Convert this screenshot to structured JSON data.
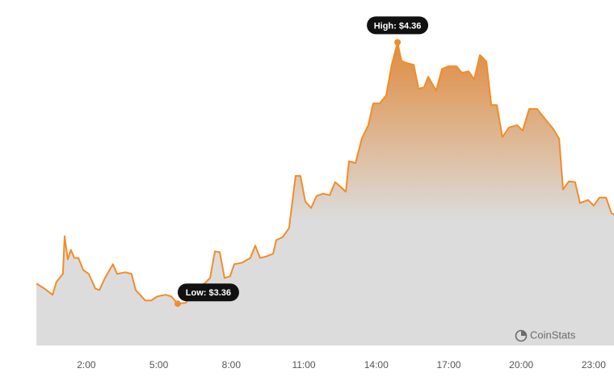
{
  "chart_data": {
    "type": "area",
    "color": "#f28c28",
    "x": [
      -0.07,
      0.26,
      0.6,
      0.76,
      1.03,
      1.1,
      1.23,
      1.36,
      1.5,
      1.67,
      1.87,
      2.1,
      2.37,
      2.54,
      2.77,
      3.1,
      3.27,
      3.61,
      3.87,
      4.04,
      4.44,
      4.68,
      4.94,
      5.28,
      5.51,
      5.78,
      6.11,
      6.45,
      6.78,
      7.12,
      7.32,
      7.52,
      7.72,
      7.95,
      8.12,
      8.45,
      8.79,
      8.99,
      9.19,
      9.46,
      9.73,
      9.86,
      10.13,
      10.39,
      10.66,
      10.86,
      11.06,
      11.3,
      11.53,
      11.8,
      12.07,
      12.3,
      12.54,
      12.74,
      12.87,
      13.14,
      13.4,
      13.67,
      13.87,
      14.14,
      14.41,
      14.64,
      14.88,
      15.04,
      15.28,
      15.55,
      15.75,
      15.98,
      16.15,
      16.48,
      16.72,
      16.98,
      17.32,
      17.55,
      17.82,
      18.05,
      18.29,
      18.56,
      18.76,
      18.99,
      19.22,
      19.49,
      19.83,
      20.06,
      20.33,
      20.66,
      21.0,
      21.33,
      21.57,
      21.73,
      21.97,
      22.23,
      22.43,
      22.77,
      23.0,
      23.24,
      23.51,
      23.74,
      23.84
    ],
    "values": [
      3.437,
      3.418,
      3.394,
      3.443,
      3.474,
      3.618,
      3.529,
      3.566,
      3.535,
      3.535,
      3.489,
      3.474,
      3.418,
      3.412,
      3.458,
      3.511,
      3.474,
      3.48,
      3.474,
      3.412,
      3.372,
      3.372,
      3.388,
      3.394,
      3.388,
      3.36,
      3.363,
      3.403,
      3.428,
      3.458,
      3.56,
      3.557,
      3.458,
      3.465,
      3.511,
      3.517,
      3.535,
      3.582,
      3.535,
      3.541,
      3.551,
      3.603,
      3.615,
      3.649,
      3.849,
      3.849,
      3.751,
      3.726,
      3.772,
      3.781,
      3.775,
      3.825,
      3.806,
      3.788,
      3.905,
      3.898,
      3.991,
      4.043,
      4.126,
      4.126,
      4.157,
      4.274,
      4.36,
      4.289,
      4.28,
      4.274,
      4.182,
      4.188,
      4.228,
      4.175,
      4.258,
      4.268,
      4.268,
      4.243,
      4.249,
      4.218,
      4.311,
      4.286,
      4.12,
      4.12,
      3.997,
      4.034,
      4.043,
      4.022,
      4.105,
      4.105,
      4.065,
      4.028,
      3.991,
      3.797,
      3.828,
      3.825,
      3.745,
      3.757,
      3.735,
      3.766,
      3.766,
      3.705,
      3.702
    ],
    "xlim": [
      -0.07,
      23.84
    ],
    "ylim": [
      3.2,
      4.46
    ],
    "xticks": [
      {
        "value": 2,
        "label": "2:00"
      },
      {
        "value": 5,
        "label": "5:00"
      },
      {
        "value": 8,
        "label": "8:00"
      },
      {
        "value": 11,
        "label": "11:00"
      },
      {
        "value": 14,
        "label": "14:00"
      },
      {
        "value": 17,
        "label": "17:00"
      },
      {
        "value": 20,
        "label": "20:00"
      },
      {
        "value": 23,
        "label": "23:00"
      }
    ],
    "annotations": [
      {
        "label": "High: $4.36",
        "x": 14.88,
        "value": 4.36
      },
      {
        "label": "Low: $3.36",
        "x": 5.78,
        "value": 3.36
      }
    ],
    "watermark": "CoinStats"
  }
}
